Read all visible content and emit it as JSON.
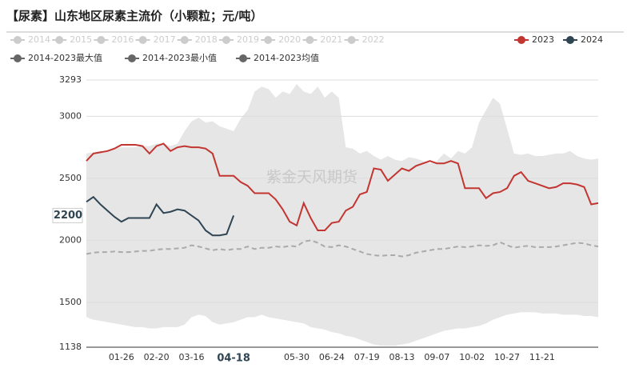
{
  "chart_data": {
    "type": "line",
    "title": "【尿素】山东地区尿素主流价（小颗粒；元/吨）",
    "watermark": "紫金天风期货",
    "inactive_legend": [
      "2014",
      "2015",
      "2016",
      "2017",
      "2018",
      "2019",
      "2020",
      "2021",
      "2022"
    ],
    "inactive_color": "#cccccc",
    "categories": [
      null,
      null,
      null,
      null,
      null,
      "01-26",
      null,
      null,
      null,
      null,
      "02-20",
      null,
      null,
      null,
      null,
      "03-16",
      null,
      null,
      null,
      null,
      null,
      null,
      null,
      null,
      null,
      null,
      null,
      null,
      null,
      null,
      "05-30",
      null,
      null,
      null,
      null,
      "06-24",
      null,
      null,
      null,
      null,
      "07-19",
      null,
      null,
      null,
      null,
      "08-13",
      null,
      null,
      null,
      null,
      "09-07",
      null,
      null,
      null,
      null,
      "10-02",
      null,
      null,
      null,
      null,
      "10-27",
      null,
      null,
      null,
      null,
      "11-21",
      null,
      null,
      null,
      null,
      null,
      null,
      null,
      null
    ],
    "ylim": [
      1138,
      3293
    ],
    "yticks": [
      1138,
      1500,
      2000,
      2500,
      3000,
      3293
    ],
    "grid": true,
    "pointer": {
      "x_label": "04-18",
      "value": 2200,
      "series": 4
    },
    "series": [
      {
        "name": "2014-2023最大值",
        "role": "band-top",
        "color": "#e6e6e6",
        "legend_color": "#666666",
        "values": [
          2700,
          2710,
          2720,
          2720,
          2740,
          2750,
          2750,
          2750,
          2760,
          2760,
          2780,
          2780,
          2760,
          2780,
          2880,
          2960,
          2990,
          2950,
          2960,
          2920,
          2900,
          2880,
          2980,
          3050,
          3200,
          3240,
          3220,
          3150,
          3200,
          3180,
          3260,
          3200,
          3180,
          3240,
          3150,
          3200,
          3150,
          2750,
          2740,
          2700,
          2720,
          2680,
          2650,
          2680,
          2650,
          2640,
          2670,
          2660,
          2640,
          2620,
          2640,
          2700,
          2660,
          2720,
          2700,
          2750,
          2950,
          3050,
          3150,
          3100,
          2900,
          2700,
          2690,
          2700,
          2680,
          2680,
          2690,
          2700,
          2700,
          2720,
          2680,
          2660,
          2650,
          2660
        ]
      },
      {
        "name": "2014-2023最小值",
        "role": "band-bottom",
        "color": "#e6e6e6",
        "legend_color": "#666666",
        "values": [
          1380,
          1360,
          1350,
          1340,
          1330,
          1320,
          1310,
          1300,
          1300,
          1290,
          1290,
          1300,
          1300,
          1300,
          1320,
          1380,
          1400,
          1390,
          1340,
          1320,
          1330,
          1340,
          1360,
          1380,
          1380,
          1400,
          1380,
          1370,
          1360,
          1350,
          1340,
          1330,
          1300,
          1290,
          1280,
          1260,
          1250,
          1230,
          1220,
          1200,
          1180,
          1160,
          1150,
          1150,
          1150,
          1160,
          1170,
          1190,
          1210,
          1230,
          1250,
          1270,
          1280,
          1290,
          1290,
          1300,
          1310,
          1330,
          1360,
          1380,
          1400,
          1410,
          1420,
          1420,
          1420,
          1410,
          1410,
          1410,
          1400,
          1400,
          1400,
          1390,
          1390,
          1380
        ]
      },
      {
        "name": "2014-2023均值",
        "role": "dashed",
        "color": "#aaaaaa",
        "legend_color": "#666666",
        "values": [
          1890,
          1900,
          1905,
          1905,
          1910,
          1905,
          1905,
          1910,
          1915,
          1915,
          1925,
          1930,
          1930,
          1935,
          1940,
          1960,
          1950,
          1935,
          1920,
          1930,
          1920,
          1930,
          1930,
          1950,
          1930,
          1940,
          1940,
          1950,
          1945,
          1955,
          1950,
          1990,
          2000,
          1980,
          1950,
          1945,
          1960,
          1950,
          1930,
          1910,
          1890,
          1880,
          1875,
          1880,
          1880,
          1870,
          1880,
          1900,
          1910,
          1920,
          1930,
          1930,
          1940,
          1950,
          1945,
          1950,
          1960,
          1955,
          1960,
          1985,
          1960,
          1940,
          1950,
          1955,
          1945,
          1945,
          1945,
          1950,
          1960,
          1970,
          1980,
          1975,
          1960,
          1950
        ]
      },
      {
        "name": "2023",
        "role": "line",
        "color": "#c23531",
        "legend_color": "#c23531",
        "values": [
          2640,
          2700,
          2710,
          2720,
          2740,
          2770,
          2770,
          2770,
          2760,
          2700,
          2760,
          2780,
          2720,
          2750,
          2760,
          2750,
          2750,
          2740,
          2700,
          2520,
          2520,
          2520,
          2470,
          2440,
          2380,
          2380,
          2380,
          2330,
          2250,
          2150,
          2120,
          2300,
          2180,
          2080,
          2080,
          2140,
          2150,
          2240,
          2270,
          2370,
          2390,
          2580,
          2570,
          2480,
          2530,
          2580,
          2560,
          2600,
          2620,
          2640,
          2620,
          2620,
          2640,
          2620,
          2420,
          2420,
          2420,
          2340,
          2380,
          2390,
          2420,
          2520,
          2550,
          2480,
          2460,
          2440,
          2420,
          2430,
          2460,
          2460,
          2450,
          2430,
          2290,
          2300
        ]
      },
      {
        "name": "2024",
        "role": "line",
        "color": "#2f4554",
        "legend_color": "#2f4554",
        "values": [
          2310,
          2350,
          2290,
          2240,
          2190,
          2150,
          2180,
          2180,
          2180,
          2180,
          2290,
          2220,
          2230,
          2250,
          2240,
          2200,
          2160,
          2080,
          2040,
          2040,
          2050,
          2200,
          null,
          null,
          null,
          null,
          null,
          null,
          null,
          null,
          null,
          null,
          null,
          null,
          null,
          null,
          null,
          null,
          null,
          null,
          null,
          null,
          null,
          null,
          null,
          null,
          null,
          null,
          null,
          null,
          null,
          null,
          null,
          null,
          null,
          null,
          null,
          null,
          null,
          null,
          null,
          null,
          null,
          null,
          null,
          null,
          null,
          null,
          null,
          null,
          null,
          null,
          null,
          null
        ]
      }
    ]
  }
}
